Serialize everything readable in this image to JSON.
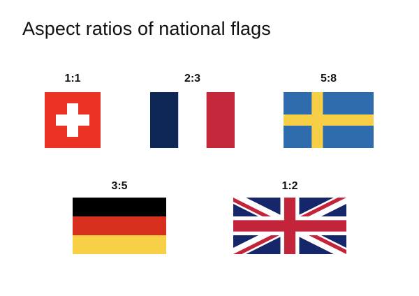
{
  "title": "Aspect ratios of national flags",
  "flags": [
    {
      "ratio": "1:1",
      "icon": "swiss-flag-icon",
      "colors": {
        "field": "#EB3323",
        "cross": "#FFFFFF"
      }
    },
    {
      "ratio": "2:3",
      "icon": "french-flag-icon",
      "colors": {
        "blue": "#0E2755",
        "white": "#FFFFFF",
        "red": "#C5283A"
      }
    },
    {
      "ratio": "5:8",
      "icon": "swedish-flag-icon",
      "colors": {
        "blue": "#2E6CAD",
        "yellow": "#F7CF46"
      }
    },
    {
      "ratio": "3:5",
      "icon": "german-flag-icon",
      "colors": {
        "black": "#000000",
        "red": "#D72E1E",
        "gold": "#F7D046"
      }
    },
    {
      "ratio": "1:2",
      "icon": "uk-flag-icon",
      "colors": {
        "blue": "#16266A",
        "white": "#FFFFFF",
        "red": "#C4243A"
      }
    }
  ]
}
